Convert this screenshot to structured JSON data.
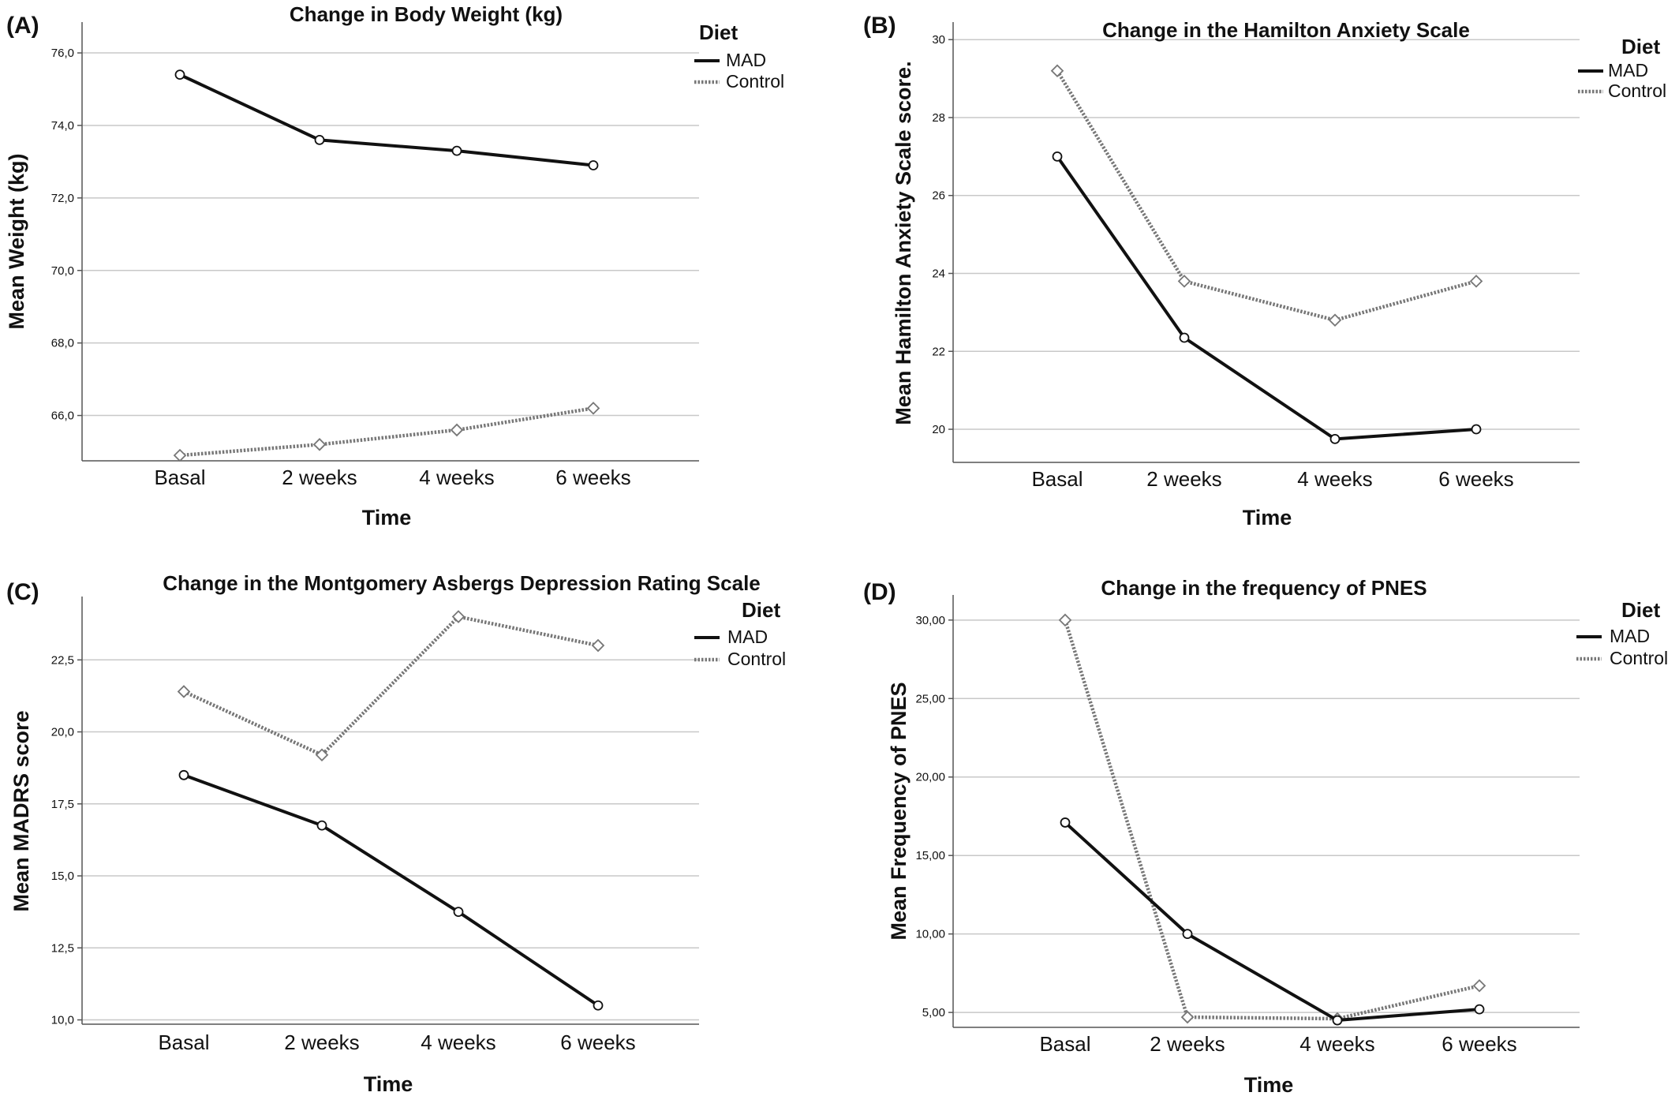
{
  "figure": {
    "background": "#ffffff",
    "grid_color": "#c8c8c8",
    "axis_color": "#555555"
  },
  "legend": {
    "title": "Diet",
    "mad_label": "MAD",
    "control_label": "Control",
    "mad_color": "#111111",
    "control_color": "#777777"
  },
  "chart_data": [
    {
      "panel": "(A)",
      "type": "line",
      "title": "Change in Body Weight (kg)",
      "xlabel": "Time",
      "ylabel": "Mean Weight (kg)",
      "categories": [
        "Basal",
        "2 weeks",
        "4 weeks",
        "6 weeks"
      ],
      "yticks": [
        66,
        68,
        70,
        72,
        74,
        76
      ],
      "ytick_labels": [
        "66,0",
        "68,0",
        "70,0",
        "72,0",
        "74,0",
        "76,0"
      ],
      "ylim": [
        64.75,
        76.85
      ],
      "grid": true,
      "legend_position": "top-right",
      "series": [
        {
          "name": "MAD",
          "style": "solid",
          "marker": "circle",
          "values": [
            75.4,
            73.6,
            73.3,
            72.9
          ]
        },
        {
          "name": "Control",
          "style": "dotted",
          "marker": "diamond",
          "values": [
            64.9,
            65.2,
            65.6,
            66.2
          ]
        }
      ]
    },
    {
      "panel": "(B)",
      "type": "line",
      "title": "Change in the Hamilton Anxiety Scale",
      "xlabel": "Time",
      "ylabel": "Mean Hamilton Anxiety Scale score.",
      "categories": [
        "Basal",
        "2 weeks",
        "4 weeks",
        "6 weeks"
      ],
      "yticks": [
        20,
        22,
        24,
        26,
        28,
        30
      ],
      "ytick_labels": [
        "20",
        "22",
        "24",
        "26",
        "28",
        "30"
      ],
      "ylim": [
        19.15,
        30.45
      ],
      "grid": true,
      "legend_position": "top-right",
      "series": [
        {
          "name": "MAD",
          "style": "solid",
          "marker": "circle",
          "values": [
            27.0,
            22.35,
            19.75,
            20.0
          ]
        },
        {
          "name": "Control",
          "style": "dotted",
          "marker": "diamond",
          "values": [
            29.2,
            23.8,
            22.8,
            23.8
          ]
        }
      ]
    },
    {
      "panel": "(C)",
      "type": "line",
      "title": "Change in the Montgomery Asbergs Depression Rating Scale",
      "xlabel": "Time",
      "ylabel": "Mean MADRS score",
      "categories": [
        "Basal",
        "2 weeks",
        "4 weeks",
        "6 weeks"
      ],
      "yticks": [
        10,
        12.5,
        15,
        17.5,
        20,
        22.5
      ],
      "ytick_labels": [
        "10,0",
        "12,5",
        "15,0",
        "17,5",
        "20,0",
        "22,5"
      ],
      "ylim": [
        9.85,
        24.7
      ],
      "grid": true,
      "legend_position": "top-right",
      "series": [
        {
          "name": "MAD",
          "style": "solid",
          "marker": "circle",
          "values": [
            18.5,
            16.75,
            13.75,
            10.5
          ]
        },
        {
          "name": "Control",
          "style": "dotted",
          "marker": "diamond",
          "values": [
            21.4,
            19.2,
            24.0,
            23.0
          ]
        }
      ]
    },
    {
      "panel": "(D)",
      "type": "line",
      "title": "Change in the frequency of PNES",
      "xlabel": "Time",
      "ylabel": "Mean Frequency of PNES",
      "categories": [
        "Basal",
        "2 weeks",
        "4 weeks",
        "6 weeks"
      ],
      "yticks": [
        5,
        10,
        15,
        20,
        25,
        30
      ],
      "ytick_labels": [
        "5,00",
        "10,00",
        "15,00",
        "20,00",
        "25,00",
        "30,00"
      ],
      "ylim": [
        4.05,
        31.6
      ],
      "grid": true,
      "legend_position": "top-right",
      "series": [
        {
          "name": "MAD",
          "style": "solid",
          "marker": "circle",
          "values": [
            17.1,
            10.0,
            4.5,
            5.2
          ]
        },
        {
          "name": "Control",
          "style": "dotted",
          "marker": "diamond",
          "values": [
            30.0,
            4.7,
            4.6,
            6.7
          ]
        }
      ]
    }
  ]
}
